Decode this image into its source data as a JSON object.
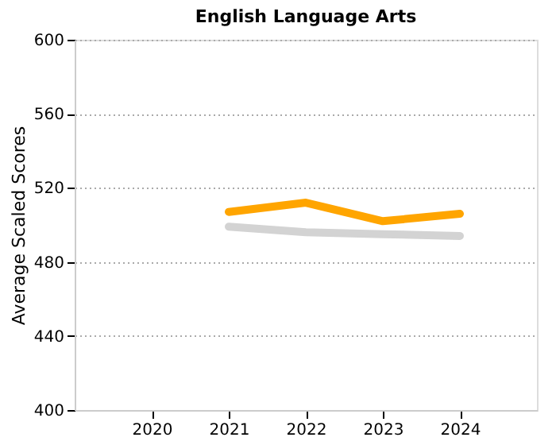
{
  "chart_data": {
    "type": "line",
    "title": "English Language Arts",
    "ylabel": "Average Scaled Scores",
    "x": [
      2021,
      2022,
      2023,
      2024
    ],
    "xlim": [
      2019,
      2025
    ],
    "xticks": [
      2020,
      2021,
      2022,
      2023,
      2024
    ],
    "ylim": [
      400,
      600
    ],
    "yticks": [
      400,
      440,
      480,
      520,
      560,
      600
    ],
    "grid": "y",
    "marker": "none",
    "line_style": "solid",
    "series": [
      {
        "color": "#d3d3d3",
        "values": [
          499,
          496,
          495,
          494
        ]
      },
      {
        "color": "#ffa500",
        "values": [
          507,
          512,
          502,
          506
        ]
      }
    ]
  }
}
